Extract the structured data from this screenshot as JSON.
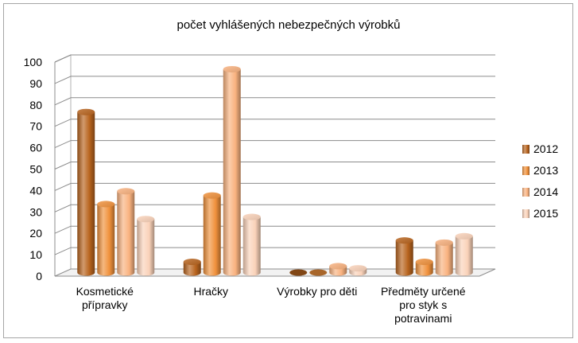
{
  "chart_data": {
    "type": "bar",
    "title": "počet vyhlášených nebezpečných výrobků",
    "categories": [
      [
        "Kosmetické",
        "přípravky"
      ],
      [
        "Hračky"
      ],
      [
        "Výrobky pro děti"
      ],
      [
        "Předměty určené",
        "pro styk s",
        "potravinami"
      ]
    ],
    "series": [
      {
        "name": "2012",
        "values": [
          75,
          5,
          0,
          15
        ]
      },
      {
        "name": "2013",
        "values": [
          32,
          36,
          0,
          5
        ]
      },
      {
        "name": "2014",
        "values": [
          38,
          95,
          3,
          14
        ]
      },
      {
        "name": "2015",
        "values": [
          25,
          26,
          2,
          17
        ]
      }
    ],
    "colors": [
      "#b8641e",
      "#f0913c",
      "#f9b27f",
      "#fad2b9"
    ],
    "ylim": [
      0,
      100
    ],
    "yticks": [
      0,
      10,
      20,
      30,
      40,
      50,
      60,
      70,
      80,
      90,
      100
    ],
    "grid": true,
    "legend": "right",
    "style": "3d-cylinder"
  }
}
